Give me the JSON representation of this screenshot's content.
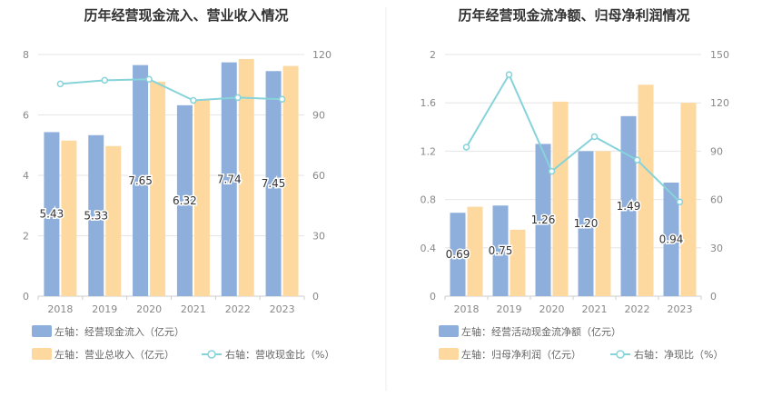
{
  "colors": {
    "bar_primary": "#8eaedb",
    "bar_secondary": "#fdd9a0",
    "line": "#86d3da",
    "grid": "#e6e6e6",
    "axis": "#cccccc",
    "tick_text": "#888888",
    "title_text": "#333333",
    "legend_text": "#666666",
    "label_text": "#333333",
    "divider": "#eeeeee"
  },
  "chart_data": [
    {
      "type": "bar+line",
      "title": "历年经营现金流入、营业收入情况",
      "categories": [
        "2018",
        "2019",
        "2020",
        "2021",
        "2022",
        "2023"
      ],
      "left_axis": {
        "min": 0,
        "max": 8,
        "ticks": [
          "0",
          "2",
          "4",
          "6",
          "8"
        ]
      },
      "right_axis": {
        "min": 0,
        "max": 120,
        "ticks": [
          "0",
          "30",
          "60",
          "90",
          "120"
        ]
      },
      "series": [
        {
          "name": "左轴：经营现金流入（亿元）",
          "kind": "bar",
          "axis": "left",
          "values": [
            5.43,
            5.33,
            7.65,
            6.32,
            7.74,
            7.45
          ],
          "labels": [
            "5.43",
            "5.33",
            "7.65",
            "6.32",
            "7.74",
            "7.45"
          ]
        },
        {
          "name": "左轴：营业总收入（亿元）",
          "kind": "bar",
          "axis": "left",
          "values": [
            5.15,
            4.97,
            7.1,
            6.5,
            7.85,
            7.62
          ]
        },
        {
          "name": "右轴：营收现金比（%）",
          "kind": "line",
          "axis": "right",
          "values": [
            105.4,
            107.2,
            107.7,
            97.2,
            98.6,
            97.8
          ]
        }
      ]
    },
    {
      "type": "bar+line",
      "title": "历年经营现金流净额、归母净利润情况",
      "categories": [
        "2018",
        "2019",
        "2020",
        "2021",
        "2022",
        "2023"
      ],
      "left_axis": {
        "min": 0,
        "max": 2,
        "ticks": [
          "0",
          "0.4",
          "0.8",
          "1.2",
          "1.6",
          "2"
        ]
      },
      "right_axis": {
        "min": 0,
        "max": 150,
        "ticks": [
          "0",
          "30",
          "60",
          "90",
          "120",
          "150"
        ]
      },
      "series": [
        {
          "name": "左轴：经营活动现金流净额（亿元）",
          "kind": "bar",
          "axis": "left",
          "values": [
            0.69,
            0.75,
            1.26,
            1.2,
            1.49,
            0.94
          ],
          "labels": [
            "0.69",
            "0.75",
            "1.26",
            "1.20",
            "1.49",
            "0.94"
          ]
        },
        {
          "name": "左轴：归母净利润（亿元）",
          "kind": "bar",
          "axis": "left",
          "values": [
            0.74,
            0.55,
            1.61,
            1.2,
            1.75,
            1.6
          ]
        },
        {
          "name": "右轴：净现比（%）",
          "kind": "line",
          "axis": "right",
          "values": [
            92.5,
            137.5,
            77.5,
            99.0,
            84.5,
            58.5
          ]
        }
      ]
    }
  ]
}
